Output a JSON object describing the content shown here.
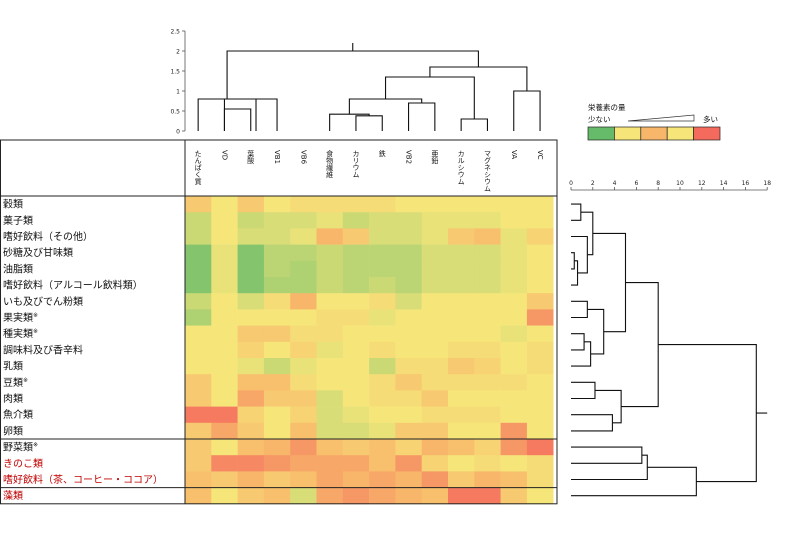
{
  "chart_data": {
    "type": "heatmap",
    "columns": [
      "たんぱく質",
      "VD",
      "葉酸",
      "VB1",
      "VB6",
      "食物繊維",
      "カリウム",
      "鉄",
      "VB2",
      "亜鉛",
      "カルシウム",
      "マグネシウム",
      "VA",
      "VC"
    ],
    "rows": [
      {
        "label": "穀類",
        "group": 1
      },
      {
        "label": "菓子類",
        "group": 1
      },
      {
        "label": "嗜好飲料（その他）",
        "group": 1
      },
      {
        "label": "砂糖及び甘味類",
        "group": 1
      },
      {
        "label": "油脂類",
        "group": 1
      },
      {
        "label": "嗜好飲料（アルコール飲料類）",
        "group": 1
      },
      {
        "label": "いも及びでん粉類",
        "group": 1
      },
      {
        "label": "果実類",
        "mark": "※",
        "group": 1
      },
      {
        "label": "種実類",
        "mark": "※",
        "group": 1
      },
      {
        "label": "調味料及び香辛料",
        "group": 1
      },
      {
        "label": "乳類",
        "group": 1
      },
      {
        "label": "豆類",
        "mark": "※",
        "group": 1
      },
      {
        "label": "肉類",
        "group": 1
      },
      {
        "label": "魚介類",
        "group": 1
      },
      {
        "label": "卵類",
        "group": 1
      },
      {
        "label": "野菜類",
        "mark": "※",
        "group": 2
      },
      {
        "label": "きのこ類",
        "group": 2,
        "color": "#c00000"
      },
      {
        "label": "嗜好飲料（茶、コーヒー・ココア）",
        "group": 2,
        "color": "#c00000"
      },
      {
        "label": "藻類",
        "group": 3,
        "color": "#c00000"
      }
    ],
    "values": [
      [
        6.5,
        5.0,
        6.5,
        5.0,
        5.5,
        5.5,
        5.5,
        5.5,
        5.0,
        5.0,
        5.0,
        5.0,
        5.0,
        5.0
      ],
      [
        3.5,
        5.0,
        3.5,
        4.0,
        4.0,
        4.5,
        3.5,
        4.0,
        4.0,
        4.5,
        4.5,
        4.5,
        5.0,
        5.0
      ],
      [
        3.5,
        5.0,
        4.0,
        4.0,
        4.5,
        7.5,
        6.5,
        4.0,
        4.0,
        4.5,
        6.5,
        7.0,
        4.5,
        6.0
      ],
      [
        1.0,
        4.5,
        1.0,
        3.0,
        3.0,
        3.5,
        3.0,
        3.0,
        3.0,
        4.0,
        4.0,
        4.0,
        4.5,
        5.0
      ],
      [
        1.0,
        4.5,
        1.0,
        3.0,
        2.5,
        3.5,
        3.0,
        3.0,
        3.0,
        4.0,
        4.0,
        4.0,
        4.5,
        5.0
      ],
      [
        1.0,
        4.5,
        1.0,
        2.5,
        2.5,
        3.5,
        3.0,
        3.5,
        3.0,
        4.0,
        4.0,
        4.0,
        4.5,
        5.0
      ],
      [
        3.5,
        5.0,
        4.0,
        5.5,
        7.5,
        5.0,
        5.0,
        5.5,
        4.0,
        5.0,
        5.0,
        5.0,
        5.0,
        6.5
      ],
      [
        2.5,
        5.0,
        5.0,
        5.0,
        5.0,
        5.5,
        5.5,
        4.5,
        5.0,
        5.0,
        5.0,
        5.0,
        5.0,
        8.5
      ],
      [
        5.0,
        5.0,
        6.5,
        6.5,
        5.5,
        5.5,
        5.0,
        5.0,
        5.0,
        5.0,
        5.0,
        5.0,
        4.5,
        5.0
      ],
      [
        5.0,
        5.0,
        6.0,
        5.0,
        6.0,
        4.5,
        5.0,
        5.5,
        5.0,
        5.0,
        5.5,
        5.5,
        5.0,
        5.5
      ],
      [
        5.0,
        5.0,
        4.5,
        3.5,
        4.5,
        5.0,
        5.0,
        3.5,
        5.5,
        5.5,
        6.5,
        6.0,
        5.0,
        5.5
      ],
      [
        6.5,
        5.0,
        7.0,
        7.0,
        5.5,
        5.0,
        5.0,
        5.5,
        6.5,
        5.5,
        5.5,
        5.5,
        5.5,
        5.0
      ],
      [
        6.5,
        5.0,
        8.0,
        6.5,
        6.5,
        4.0,
        5.0,
        5.5,
        5.5,
        6.5,
        5.0,
        5.0,
        5.0,
        5.0
      ],
      [
        9.5,
        9.5,
        6.0,
        5.0,
        6.0,
        4.0,
        4.5,
        5.0,
        5.0,
        5.5,
        5.5,
        5.5,
        5.0,
        5.0
      ],
      [
        6.5,
        8.0,
        6.5,
        5.0,
        7.0,
        4.0,
        4.0,
        4.5,
        6.5,
        6.5,
        5.0,
        5.0,
        8.5,
        5.0
      ],
      [
        6.5,
        5.0,
        7.0,
        7.5,
        8.5,
        7.0,
        6.5,
        7.0,
        6.0,
        7.5,
        7.0,
        6.0,
        8.5,
        9.5
      ],
      [
        6.5,
        9.0,
        9.0,
        8.5,
        8.0,
        8.0,
        8.0,
        7.0,
        8.5,
        6.0,
        5.0,
        5.5,
        5.0,
        5.5
      ],
      [
        7.0,
        6.5,
        7.5,
        6.5,
        7.0,
        8.0,
        7.5,
        8.0,
        7.5,
        8.5,
        6.5,
        7.5,
        7.0,
        5.5
      ],
      [
        7.0,
        5.0,
        6.5,
        7.0,
        4.0,
        8.0,
        8.5,
        8.0,
        7.5,
        7.0,
        9.5,
        9.5,
        6.5,
        5.0
      ]
    ],
    "scale": {
      "min": 0,
      "max": 10
    },
    "top_dendrogram": {
      "axis_ticks": [
        "0",
        "0.5",
        "1",
        "1.5",
        "2",
        "2.5"
      ],
      "axis_range": [
        0,
        2.5
      ],
      "merges": [
        {
          "a": 1,
          "b": 2,
          "h": 0.55,
          "ca": "leaf",
          "cb": "leaf"
        },
        {
          "a": 1,
          "b": 3,
          "h": 0.8,
          "ca": "node",
          "cb": "leaf"
        },
        {
          "a": 0,
          "b": 2.2,
          "h": 0.8,
          "ca": "leaf",
          "cb": "node"
        },
        {
          "a": 6,
          "b": 7,
          "h": 0.38,
          "ca": "leaf",
          "cb": "leaf"
        },
        {
          "a": 5,
          "b": 6.5,
          "h": 0.42,
          "ca": "leaf",
          "cb": "node"
        },
        {
          "a": 8,
          "b": 9,
          "h": 0.7,
          "ca": "leaf",
          "cb": "leaf"
        },
        {
          "a": 5.75,
          "b": 8.5,
          "h": 0.8,
          "ca": "node",
          "cb": "node"
        },
        {
          "a": 10,
          "b": 11,
          "h": 0.3,
          "ca": "leaf",
          "cb": "leaf"
        },
        {
          "a": 7.125,
          "b": 10.5,
          "h": 1.35,
          "ca": "node",
          "cb": "node"
        },
        {
          "a": 12,
          "b": 13,
          "h": 1.0,
          "ca": "leaf",
          "cb": "leaf"
        },
        {
          "a": 8.8125,
          "b": 12.5,
          "h": 1.6,
          "ca": "node",
          "cb": "node"
        },
        {
          "a": 1.1,
          "b": 10.65625,
          "h": 2.0,
          "ca": "node",
          "cb": "node"
        }
      ],
      "root_stem": 2.2
    },
    "right_dendrogram": {
      "axis_ticks": [
        "0",
        "2",
        "4",
        "6",
        "8",
        "10",
        "12",
        "14",
        "16",
        "18"
      ],
      "axis_range": [
        0,
        18
      ],
      "merges": [
        {
          "a": 0,
          "b": 1,
          "h": 0.9,
          "ca": "leaf",
          "cb": "leaf"
        },
        {
          "a": 3,
          "b": 4,
          "h": 0.3,
          "ca": "leaf",
          "cb": "leaf"
        },
        {
          "a": 3.5,
          "b": 5,
          "h": 0.6,
          "ca": "node",
          "cb": "leaf"
        },
        {
          "a": 2,
          "b": 4.25,
          "h": 1.5,
          "ca": "leaf",
          "cb": "node"
        },
        {
          "a": 0.5,
          "b": 3.125,
          "h": 2.0,
          "ca": "node",
          "cb": "node"
        },
        {
          "a": 6,
          "b": 7,
          "h": 1.5,
          "ca": "leaf",
          "cb": "leaf"
        },
        {
          "a": 8,
          "b": 9,
          "h": 1.2,
          "ca": "leaf",
          "cb": "leaf"
        },
        {
          "a": 8.5,
          "b": 10,
          "h": 1.8,
          "ca": "node",
          "cb": "leaf"
        },
        {
          "a": 6.5,
          "b": 9.25,
          "h": 3.0,
          "ca": "node",
          "cb": "node"
        },
        {
          "a": 1.8125,
          "b": 7.875,
          "h": 5.0,
          "ca": "node",
          "cb": "node"
        },
        {
          "a": 11,
          "b": 12,
          "h": 2.2,
          "ca": "leaf",
          "cb": "leaf"
        },
        {
          "a": 13,
          "b": 14,
          "h": 3.8,
          "ca": "leaf",
          "cb": "leaf"
        },
        {
          "a": 11.5,
          "b": 13.5,
          "h": 4.6,
          "ca": "node",
          "cb": "node"
        },
        {
          "a": 4.84375,
          "b": 12.5,
          "h": 8.0,
          "ca": "node",
          "cb": "node"
        },
        {
          "a": 15,
          "b": 16,
          "h": 6.5,
          "ca": "leaf",
          "cb": "leaf"
        },
        {
          "a": 15.5,
          "b": 17,
          "h": 7.0,
          "ca": "node",
          "cb": "leaf"
        },
        {
          "a": 16.25,
          "b": 18,
          "h": 11.5,
          "ca": "node",
          "cb": "leaf"
        },
        {
          "a": 8.671875,
          "b": 17.125,
          "h": 17.0,
          "ca": "node",
          "cb": "node"
        }
      ],
      "root_stem": 18
    }
  },
  "legend": {
    "title": "栄養素の量",
    "low_label": "少ない",
    "high_label": "多い",
    "swatches": [
      "#66bb6a",
      "#f6e67a",
      "#f8b66a",
      "#f6e67a",
      "#f46b5e"
    ]
  }
}
